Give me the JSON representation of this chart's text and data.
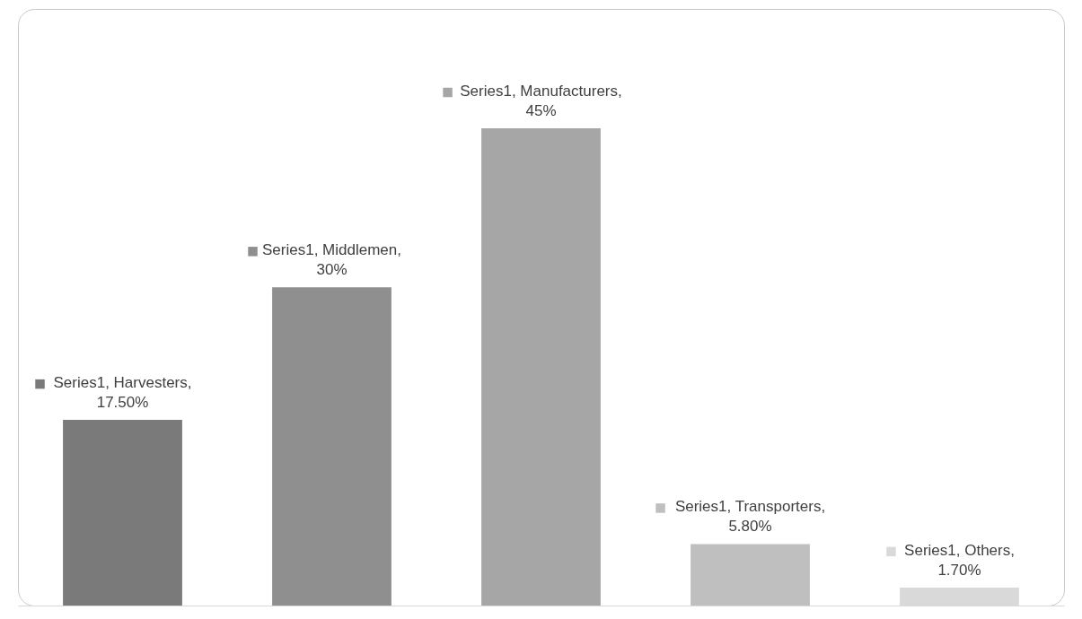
{
  "chart_data": {
    "type": "bar",
    "categories": [
      null,
      null,
      null,
      null,
      null
    ],
    "values": [
      17.5,
      30,
      45,
      5.8,
      1.7
    ],
    "colors": [
      "#7a7a7a",
      "#8f8f8f",
      "#a6a6a6",
      "#bfbfbf",
      "#d9d9d9"
    ],
    "value_labels": [
      "Series1, Harvesters, 17.50%",
      "Series1, Middlemen, 30%",
      "Series1, Manufacturers, 45%",
      "Series1, Transporters, 5.80%",
      "Series1, Others, 1.70%"
    ],
    "grid": false
  }
}
